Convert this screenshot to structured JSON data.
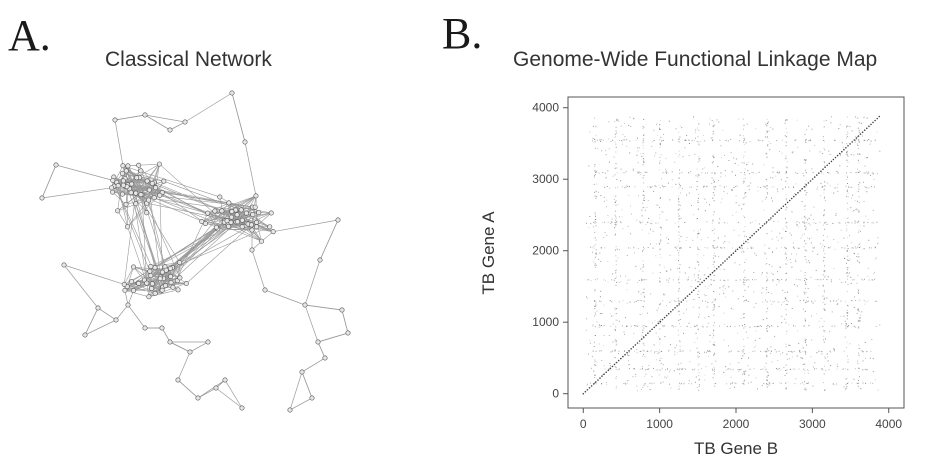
{
  "panels": {
    "a": {
      "letter": "A.",
      "title": "Classical Network"
    },
    "b": {
      "letter": "B.",
      "title": "Genome-Wide Functional Linkage Map"
    }
  },
  "colors": {
    "edge": "#9a9a9a",
    "node_stroke": "#555555",
    "node_fill": "#e6e6e6",
    "point": "#6f6f6f"
  },
  "chart_data": [
    {
      "type": "network",
      "title": "Classical Network"
    },
    {
      "type": "scatter",
      "title": "Genome-Wide Functional Linkage Map",
      "xlabel": "TB Gene B",
      "ylabel": "TB Gene A",
      "xlim": [
        -200,
        4200
      ],
      "ylim": [
        -200,
        4150
      ],
      "xticks": [
        0,
        1000,
        2000,
        3000,
        4000
      ],
      "yticks": [
        0,
        1000,
        2000,
        3000,
        4000
      ],
      "grid": false,
      "legend": "none",
      "diagonal": {
        "x": [
          0,
          3900
        ],
        "y": [
          0,
          3900
        ]
      }
    }
  ]
}
